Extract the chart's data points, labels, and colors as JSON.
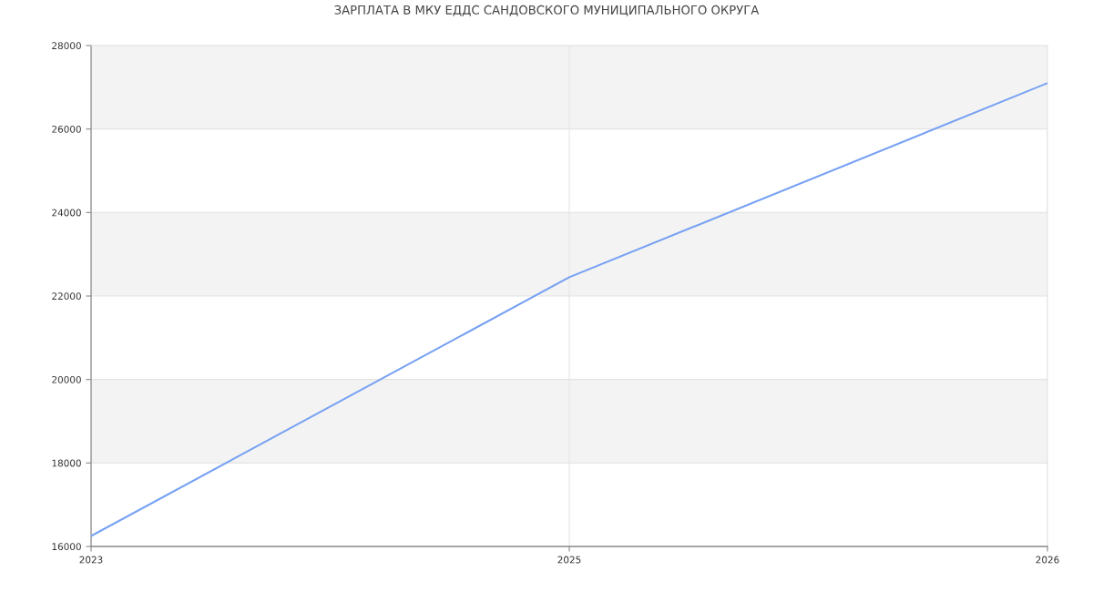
{
  "chart_data": {
    "type": "line",
    "title": "ЗАРПЛАТА В МКУ ЕДДС САНДОВСКОГО МУНИЦИПАЛЬНОГО ОКРУГА",
    "categories": [
      "2023",
      "2025",
      "2026"
    ],
    "series": [
      {
        "color": "#77a1f3",
        "values": [
          16250,
          22450,
          27100
        ]
      }
    ],
    "ylim": [
      16000,
      28000
    ],
    "yticks": [
      16000,
      18000,
      20000,
      22000,
      24000,
      26000,
      28000
    ],
    "bands": [
      {
        "axis": "y",
        "from": 18000,
        "to": 20000,
        "color": "#f3f3f3"
      },
      {
        "axis": "y",
        "from": 22000,
        "to": 24000,
        "color": "#f3f3f3"
      },
      {
        "axis": "y",
        "from": 26000,
        "to": 28000,
        "color": "#f3f3f3"
      }
    ],
    "grid": true,
    "marker": "none",
    "line_style": "solid"
  }
}
